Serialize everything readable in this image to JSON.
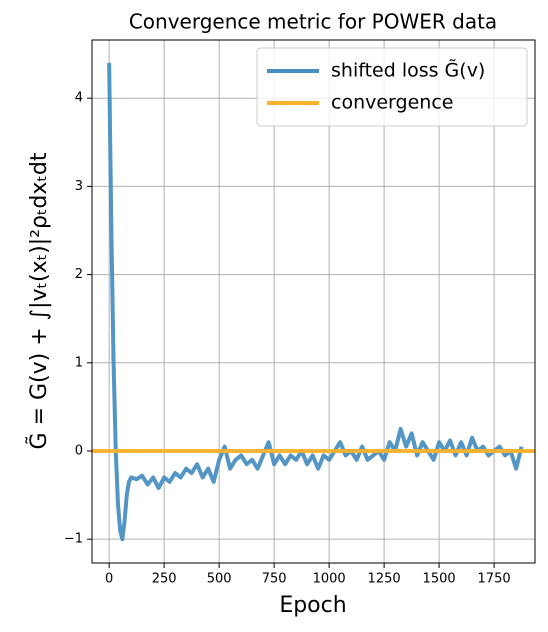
{
  "chart_data": {
    "type": "line",
    "title": "Convergence metric for POWER data",
    "xlabel": "Epoch",
    "ylabel": "G̃ = G(v) + ∫|vₜ(xₜ)|²ρₜdxₜdt",
    "x": [
      0,
      10,
      20,
      30,
      40,
      50,
      60,
      70,
      80,
      90,
      100,
      125,
      150,
      175,
      200,
      225,
      250,
      275,
      300,
      325,
      350,
      375,
      400,
      425,
      450,
      475,
      500,
      525,
      550,
      575,
      600,
      625,
      650,
      675,
      700,
      725,
      750,
      775,
      800,
      825,
      850,
      875,
      900,
      925,
      950,
      975,
      1000,
      1025,
      1050,
      1075,
      1100,
      1125,
      1150,
      1175,
      1200,
      1225,
      1250,
      1275,
      1300,
      1325,
      1350,
      1375,
      1400,
      1425,
      1450,
      1475,
      1500,
      1525,
      1550,
      1575,
      1600,
      1625,
      1650,
      1675,
      1700,
      1725,
      1750,
      1775,
      1800,
      1825,
      1850,
      1875
    ],
    "series": [
      {
        "name": "shifted loss G̃(v)",
        "color": "#4a8fc1",
        "values": [
          4.4,
          2.5,
          1.0,
          0.0,
          -0.6,
          -0.9,
          -1.0,
          -0.8,
          -0.5,
          -0.35,
          -0.3,
          -0.32,
          -0.28,
          -0.38,
          -0.3,
          -0.42,
          -0.3,
          -0.35,
          -0.25,
          -0.3,
          -0.2,
          -0.25,
          -0.15,
          -0.3,
          -0.2,
          -0.35,
          -0.1,
          0.05,
          -0.2,
          -0.1,
          -0.05,
          -0.15,
          -0.1,
          -0.2,
          -0.05,
          0.1,
          -0.15,
          -0.05,
          -0.15,
          -0.05,
          -0.1,
          0.0,
          -0.15,
          -0.05,
          -0.2,
          -0.05,
          -0.1,
          0.0,
          0.1,
          -0.05,
          0.0,
          -0.1,
          0.05,
          -0.1,
          -0.05,
          0.0,
          -0.1,
          0.1,
          0.0,
          0.25,
          0.05,
          0.2,
          -0.05,
          0.1,
          0.0,
          -0.1,
          0.1,
          0.0,
          0.12,
          -0.05,
          0.1,
          -0.05,
          0.15,
          0.0,
          0.05,
          -0.05,
          0.0,
          0.05,
          -0.05,
          0.0,
          -0.2,
          0.05
        ]
      }
    ],
    "hlines": [
      {
        "name": "convergence",
        "color": "#f8b12c",
        "value": 0
      }
    ],
    "xlim": [
      -78,
      1936
    ],
    "ylim": [
      -1.27,
      4.66
    ],
    "xticks": [
      0,
      250,
      500,
      750,
      1000,
      1250,
      1500,
      1750
    ],
    "yticks": [
      {
        "value": -1,
        "label": "−1"
      },
      0,
      1,
      2,
      3,
      4
    ],
    "grid": true,
    "legend": "upper right"
  }
}
